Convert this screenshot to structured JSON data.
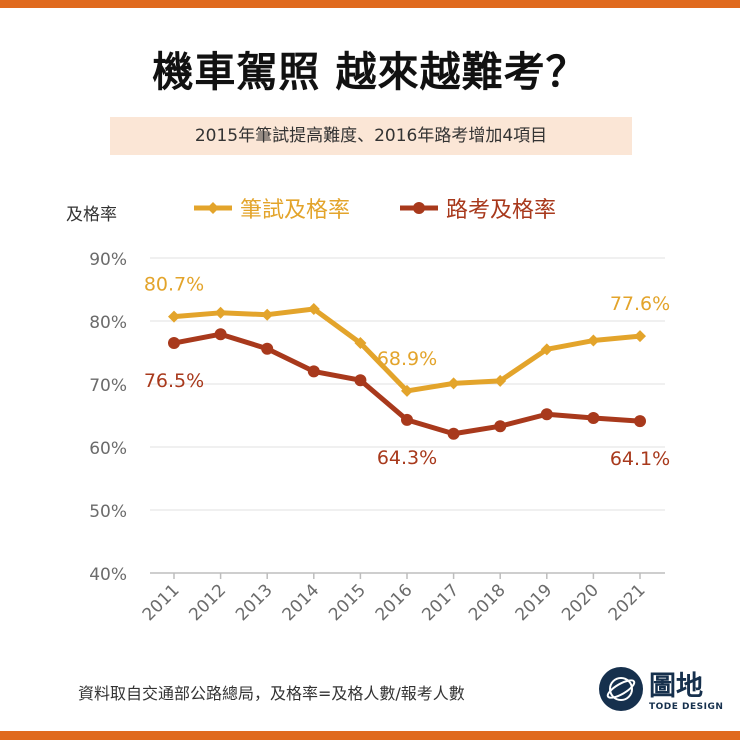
{
  "title": "機車駕照 越來越難考？",
  "subtitle": "2015年筆試提高難度、2016年路考增加4項目",
  "source_note": "資料取自交通部公路總局，及格率=及格人數/報考人數",
  "brand": {
    "name": "圖地",
    "tagline": "TODE DESIGN",
    "color": "#16304d"
  },
  "colors": {
    "accent": "#e06a1e",
    "written": "#e3a42b",
    "road": "#a8391c",
    "subtitle_bg": "#fbe6d6"
  },
  "chart_data": {
    "type": "line",
    "ylabel": "及格率",
    "ylim": [
      40,
      90
    ],
    "yticks": [
      "40%",
      "50%",
      "60%",
      "70%",
      "80%",
      "90%"
    ],
    "categories": [
      "2011",
      "2012",
      "2013",
      "2014",
      "2015",
      "2016",
      "2017",
      "2018",
      "2019",
      "2020",
      "2021"
    ],
    "grid": true,
    "legend_position": "top",
    "series": [
      {
        "name": "筆試及格率",
        "marker": "diamond",
        "values": [
          80.7,
          81.3,
          81.0,
          81.9,
          76.5,
          68.9,
          70.1,
          70.5,
          75.5,
          76.9,
          77.6
        ]
      },
      {
        "name": "路考及格率",
        "marker": "circle",
        "values": [
          76.5,
          77.9,
          75.6,
          72.0,
          70.6,
          64.3,
          62.1,
          63.3,
          65.2,
          64.6,
          64.1
        ]
      }
    ],
    "annotations": [
      {
        "series": 0,
        "index": 0,
        "text": "80.7%",
        "pos": "above"
      },
      {
        "series": 0,
        "index": 5,
        "text": "68.9%",
        "pos": "above"
      },
      {
        "series": 0,
        "index": 10,
        "text": "77.6%",
        "pos": "above"
      },
      {
        "series": 1,
        "index": 0,
        "text": "76.5%",
        "pos": "below"
      },
      {
        "series": 1,
        "index": 5,
        "text": "64.3%",
        "pos": "below"
      },
      {
        "series": 1,
        "index": 10,
        "text": "64.1%",
        "pos": "below"
      }
    ]
  }
}
